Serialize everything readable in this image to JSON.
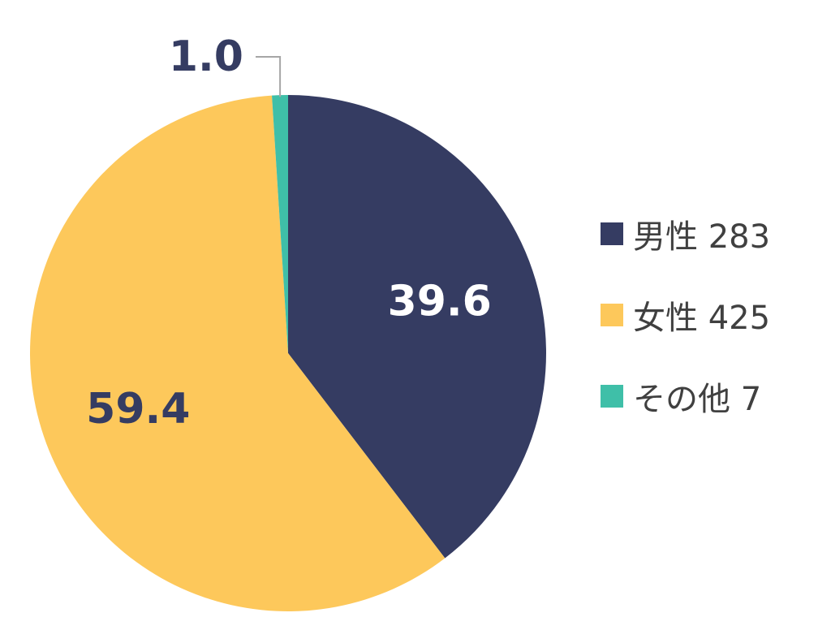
{
  "chart_data": {
    "type": "pie",
    "slices": [
      {
        "label": "男性",
        "count": "283",
        "value": 39.6,
        "display": "39.6",
        "color": "#353c62"
      },
      {
        "label": "女性",
        "count": "425",
        "value": 59.4,
        "display": "59.4",
        "color": "#fdc85b"
      },
      {
        "label": "その他",
        "count": "7",
        "value": 1.0,
        "display": "1.0",
        "color": "#3fbfa8"
      }
    ],
    "start_angle_deg": 0,
    "direction": "clockwise",
    "legend_position": "right"
  },
  "legend": {
    "items": [
      {
        "label": "男性 283",
        "color": "#353c62"
      },
      {
        "label": "女性 425",
        "color": "#fdc85b"
      },
      {
        "label": "その他 7",
        "color": "#3fbfa8"
      }
    ]
  },
  "label_colors": {
    "inside_dark_slice": "#ffffff",
    "inside_light_slice": "#353c62",
    "outside": "#353c62",
    "leader_line": "#a6a6a6"
  }
}
